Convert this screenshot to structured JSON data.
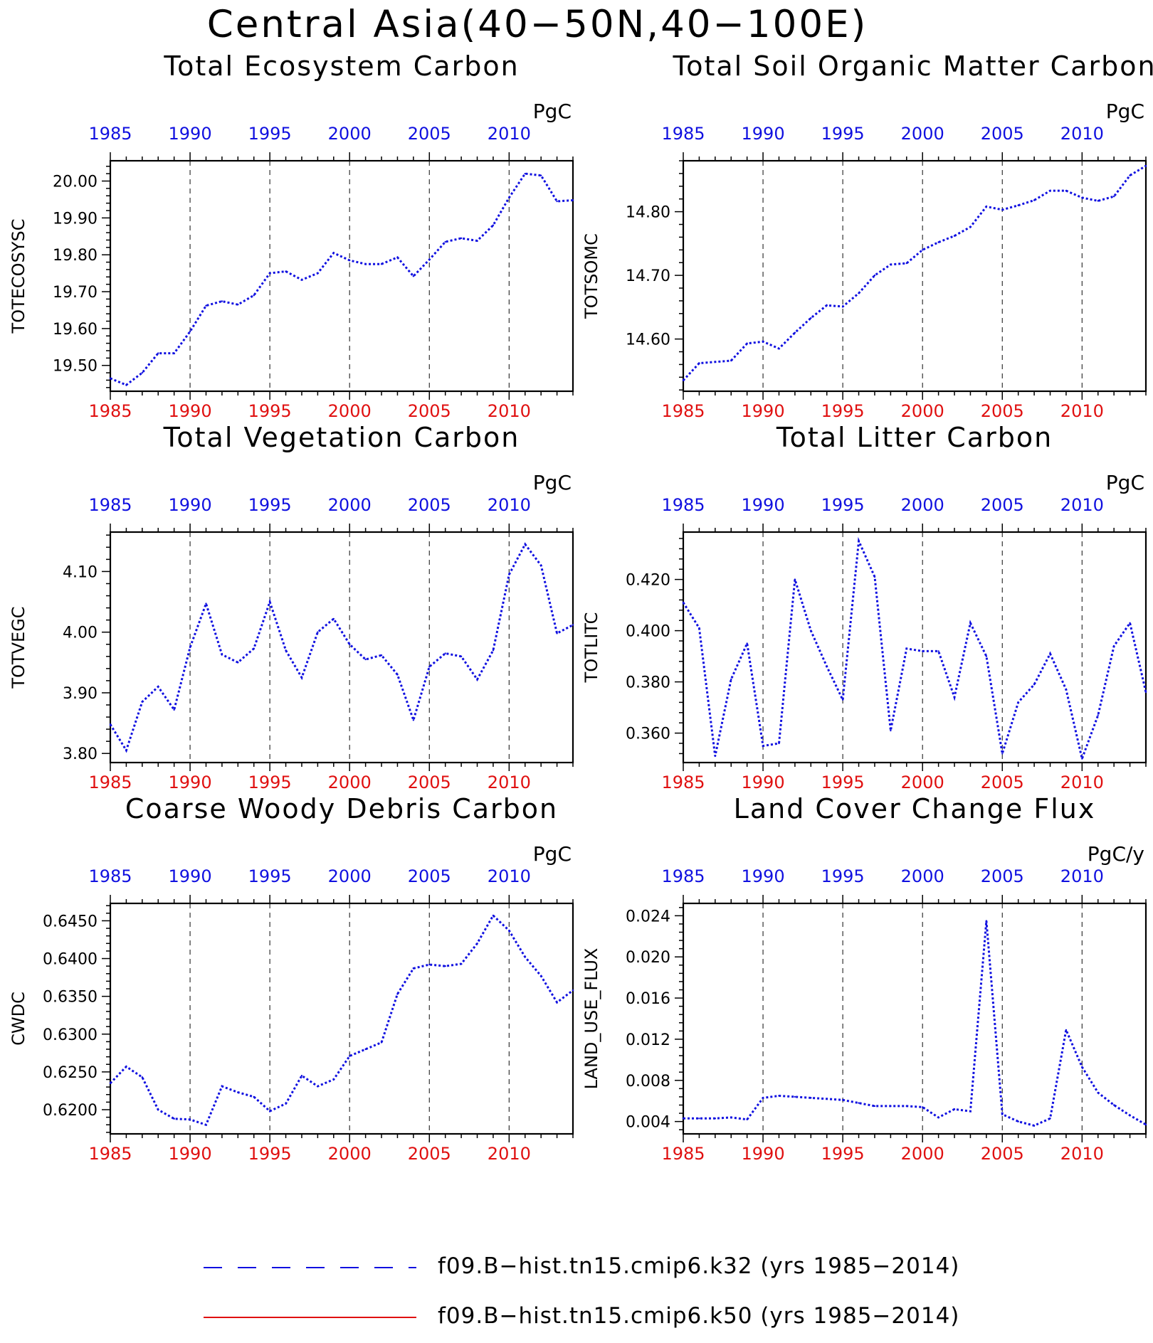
{
  "title": "Central Asia(40−50N,40−100E)",
  "colors": {
    "series": "#1010e0",
    "top_ticks": "#1010e0",
    "bottom_ticks": "#e01010",
    "ref_series": "#e01010"
  },
  "x_ticks": [
    "1985",
    "1990",
    "1995",
    "2000",
    "2005",
    "2010"
  ],
  "years": [
    1985,
    1986,
    1987,
    1988,
    1989,
    1990,
    1991,
    1992,
    1993,
    1994,
    1995,
    1996,
    1997,
    1998,
    1999,
    2000,
    2001,
    2002,
    2003,
    2004,
    2005,
    2006,
    2007,
    2008,
    2009,
    2010,
    2011,
    2012,
    2013,
    2014
  ],
  "chart_data": [
    {
      "type": "line",
      "title": "Total Ecosystem Carbon",
      "units": "PgC",
      "ylabel": "TOTECOSYSC",
      "xlim": [
        1985,
        2014
      ],
      "ylim": [
        19.43,
        20.055
      ],
      "yticks": [
        "19.50",
        "19.60",
        "19.70",
        "19.80",
        "19.90",
        "20.00"
      ],
      "grid_x": [
        1990,
        1995,
        2000,
        2005,
        2010
      ],
      "values": [
        19.465,
        19.447,
        19.48,
        19.533,
        19.533,
        19.592,
        19.662,
        19.674,
        19.665,
        19.69,
        19.75,
        19.755,
        19.732,
        19.75,
        19.805,
        19.785,
        19.775,
        19.775,
        19.793,
        19.742,
        19.787,
        19.835,
        19.845,
        19.838,
        19.88,
        19.955,
        20.02,
        20.015,
        19.945,
        19.948
      ]
    },
    {
      "type": "line",
      "title": "Total Soil Organic Matter Carbon",
      "units": "PgC",
      "ylabel": "TOTSOMC",
      "xlim": [
        1985,
        2014
      ],
      "ylim": [
        14.518,
        14.88
      ],
      "yticks": [
        "14.60",
        "14.70",
        "14.80"
      ],
      "grid_x": [
        1990,
        1995,
        2000,
        2005,
        2010
      ],
      "values": [
        14.535,
        14.562,
        14.564,
        14.566,
        14.593,
        14.596,
        14.585,
        14.61,
        14.633,
        14.653,
        14.651,
        14.672,
        14.7,
        14.717,
        14.719,
        14.74,
        14.752,
        14.762,
        14.776,
        14.808,
        14.803,
        14.81,
        14.818,
        14.833,
        14.833,
        14.822,
        14.817,
        14.824,
        14.857,
        14.872
      ]
    },
    {
      "type": "line",
      "title": "Total Vegetation Carbon",
      "units": "PgC",
      "ylabel": "TOTVEGC",
      "xlim": [
        1985,
        2014
      ],
      "ylim": [
        3.785,
        4.165
      ],
      "yticks": [
        "3.80",
        "3.90",
        "4.00",
        "4.10"
      ],
      "grid_x": [
        1990,
        1995,
        2000,
        2005,
        2010
      ],
      "values": [
        3.848,
        3.805,
        3.885,
        3.91,
        3.872,
        3.975,
        4.047,
        3.963,
        3.95,
        3.973,
        4.05,
        3.97,
        3.925,
        4.0,
        4.022,
        3.98,
        3.955,
        3.962,
        3.93,
        3.855,
        3.943,
        3.965,
        3.96,
        3.922,
        3.97,
        4.095,
        4.145,
        4.11,
        3.998,
        4.012
      ]
    },
    {
      "type": "line",
      "title": "Total Litter Carbon",
      "units": "PgC",
      "ylabel": "TOTLITC",
      "xlim": [
        1985,
        2014
      ],
      "ylim": [
        0.3485,
        0.4385
      ],
      "yticks": [
        "0.360",
        "0.380",
        "0.400",
        "0.420"
      ],
      "grid_x": [
        1990,
        1995,
        2000,
        2005,
        2010
      ],
      "values": [
        0.411,
        0.401,
        0.351,
        0.381,
        0.395,
        0.355,
        0.356,
        0.42,
        0.4,
        0.386,
        0.373,
        0.435,
        0.421,
        0.361,
        0.393,
        0.392,
        0.392,
        0.374,
        0.403,
        0.39,
        0.352,
        0.372,
        0.379,
        0.391,
        0.377,
        0.35,
        0.367,
        0.394,
        0.403,
        0.376
      ]
    },
    {
      "type": "line",
      "title": "Coarse Woody Debris Carbon",
      "units": "PgC",
      "ylabel": "CWDC",
      "xlim": [
        1985,
        2014
      ],
      "ylim": [
        0.6168,
        0.6473
      ],
      "yticks": [
        "0.6200",
        "0.6250",
        "0.6300",
        "0.6350",
        "0.6400",
        "0.6450"
      ],
      "grid_x": [
        1990,
        1995,
        2000,
        2005,
        2010
      ],
      "values": [
        0.6235,
        0.6257,
        0.6243,
        0.62,
        0.6188,
        0.6187,
        0.618,
        0.6231,
        0.6223,
        0.6217,
        0.6198,
        0.6208,
        0.6245,
        0.6231,
        0.624,
        0.6271,
        0.628,
        0.6289,
        0.6353,
        0.6387,
        0.6392,
        0.639,
        0.6393,
        0.642,
        0.6457,
        0.6437,
        0.6402,
        0.6377,
        0.6342,
        0.6358
      ]
    },
    {
      "type": "line",
      "title": "Land Cover Change Flux",
      "units": "PgC/y",
      "ylabel": "LAND_USE_FLUX",
      "xlim": [
        1985,
        2014
      ],
      "ylim": [
        0.0028,
        0.0252
      ],
      "yticks": [
        "0.004",
        "0.008",
        "0.012",
        "0.016",
        "0.020",
        "0.024"
      ],
      "grid_x": [
        1990,
        1995,
        2000,
        2005,
        2010
      ],
      "values": [
        0.0043,
        0.0043,
        0.0043,
        0.0044,
        0.0042,
        0.0063,
        0.0065,
        0.0064,
        0.0063,
        0.0062,
        0.0061,
        0.0058,
        0.0055,
        0.0055,
        0.0055,
        0.0054,
        0.0044,
        0.0052,
        0.005,
        0.0235,
        0.0047,
        0.004,
        0.0036,
        0.0043,
        0.0129,
        0.0093,
        0.0068,
        0.0056,
        0.0046,
        0.0037
      ]
    }
  ],
  "legend": [
    {
      "label": "f09.B−hist.tn15.cmip6.k32 (yrs 1985−2014)",
      "style": "dashed",
      "color": "#1010e0"
    },
    {
      "label": "f09.B−hist.tn15.cmip6.k50 (yrs 1985−2014)",
      "style": "solid",
      "color": "#e01010"
    }
  ]
}
